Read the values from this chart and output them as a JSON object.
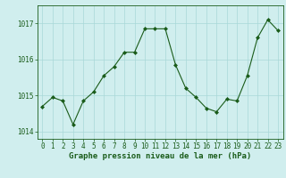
{
  "x": [
    0,
    1,
    2,
    3,
    4,
    5,
    6,
    7,
    8,
    9,
    10,
    11,
    12,
    13,
    14,
    15,
    16,
    17,
    18,
    19,
    20,
    21,
    22,
    23
  ],
  "y": [
    1014.7,
    1014.95,
    1014.85,
    1014.2,
    1014.85,
    1015.1,
    1015.55,
    1015.8,
    1016.2,
    1016.2,
    1016.85,
    1016.85,
    1016.85,
    1015.85,
    1015.2,
    1014.95,
    1014.65,
    1014.55,
    1014.9,
    1014.85,
    1015.55,
    1016.6,
    1017.1,
    1016.8
  ],
  "ylim": [
    1013.8,
    1017.5
  ],
  "yticks": [
    1014,
    1015,
    1016,
    1017
  ],
  "xticks": [
    0,
    1,
    2,
    3,
    4,
    5,
    6,
    7,
    8,
    9,
    10,
    11,
    12,
    13,
    14,
    15,
    16,
    17,
    18,
    19,
    20,
    21,
    22,
    23
  ],
  "line_color": "#1a5c1a",
  "marker_color": "#1a5c1a",
  "bg_color": "#d0eeee",
  "grid_color": "#a8d8d8",
  "xlabel": "Graphe pression niveau de la mer (hPa)",
  "xlabel_fontsize": 6.5,
  "tick_fontsize": 5.5,
  "figsize": [
    3.2,
    2.0
  ],
  "dpi": 100
}
